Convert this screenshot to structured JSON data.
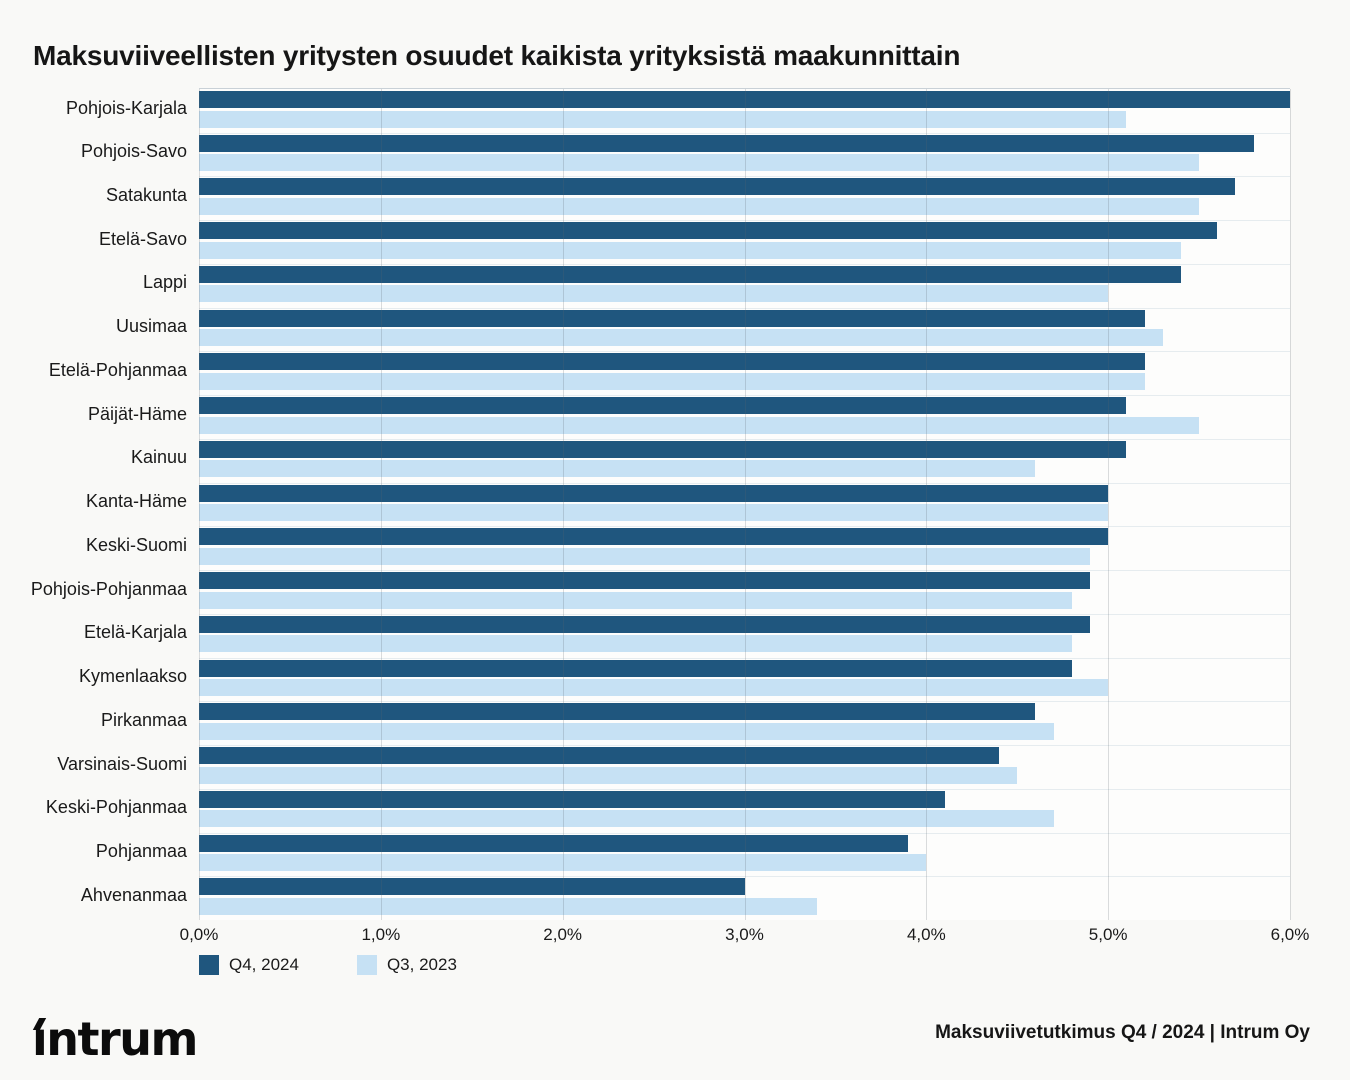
{
  "title": "Maksuviiveellisten yritysten osuudet kaikista yrityksistä maakunnittain",
  "chart_data": {
    "type": "bar",
    "orientation": "horizontal",
    "title": "Maksuviiveellisten yritysten osuudet kaikista yrityksistä maakunnittain",
    "categories": [
      "Pohjois-Karjala",
      "Pohjois-Savo",
      "Satakunta",
      "Etelä-Savo",
      "Lappi",
      "Uusimaa",
      "Etelä-Pohjanmaa",
      "Päijät-Häme",
      "Kainuu",
      "Kanta-Häme",
      "Keski-Suomi",
      "Pohjois-Pohjanmaa",
      "Etelä-Karjala",
      "Kymenlaakso",
      "Pirkanmaa",
      "Varsinais-Suomi",
      "Keski-Pohjanmaa",
      "Pohjanmaa",
      "Ahvenanmaa"
    ],
    "series": [
      {
        "name": "Q4, 2024",
        "color": "#1F567E",
        "values": [
          6.0,
          5.8,
          5.7,
          5.6,
          5.4,
          5.2,
          5.2,
          5.1,
          5.1,
          5.0,
          5.0,
          4.9,
          4.9,
          4.8,
          4.6,
          4.4,
          4.1,
          3.9,
          3.0
        ]
      },
      {
        "name": "Q3, 2023",
        "color": "#C6E1F4",
        "values": [
          5.1,
          5.5,
          5.5,
          5.4,
          5.0,
          5.3,
          5.2,
          5.5,
          4.6,
          5.0,
          4.9,
          4.8,
          4.8,
          5.0,
          4.7,
          4.5,
          4.7,
          4.0,
          3.4
        ]
      }
    ],
    "xlim": [
      0,
      6
    ],
    "x_ticks": [
      "0,0%",
      "1,0%",
      "2,0%",
      "3,0%",
      "4,0%",
      "5,0%",
      "6,0%"
    ],
    "xlabel": "",
    "ylabel": "",
    "grid": "vertical",
    "legend_position": "bottom-left"
  },
  "legend": {
    "items": [
      {
        "label": "Q4, 2024",
        "color": "#1F567E"
      },
      {
        "label": "Q3, 2023",
        "color": "#C6E1F4"
      }
    ]
  },
  "footer": {
    "logo": "intrum",
    "source": "Maksuviivetutkimus Q4 / 2024 | Intrum Oy"
  }
}
